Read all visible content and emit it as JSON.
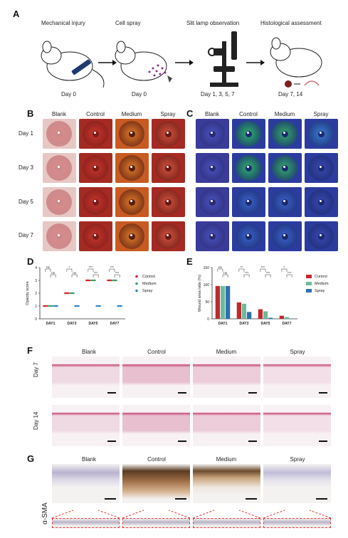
{
  "panels": {
    "A": "A",
    "B": "B",
    "C": "C",
    "D": "D",
    "E": "E",
    "F": "F",
    "G": "G"
  },
  "flow": {
    "steps": [
      {
        "title": "Mechanical injury",
        "day": "Day 0"
      },
      {
        "title": "Cell spray",
        "day": "Day 0"
      },
      {
        "title": "Slit lamp observation",
        "day": "Day 1, 3, 5, 7"
      },
      {
        "title": "Histological assessment",
        "day": "Day 7, 14"
      }
    ]
  },
  "groups": [
    "Blank",
    "Control",
    "Medium",
    "Spray"
  ],
  "days_bc": [
    "Day 1",
    "Day 3",
    "Day 5",
    "Day 7"
  ],
  "chart_data": [
    {
      "type": "scatter",
      "panel": "D",
      "ylabel": "Opacity score",
      "categories": [
        "DAY1",
        "DAY3",
        "DAY5",
        "DAY7"
      ],
      "ylim": [
        0,
        4
      ],
      "yticks": [
        0,
        1,
        2,
        3,
        4
      ],
      "series": [
        {
          "name": "Control",
          "color": "#d7262b",
          "values": [
            1,
            2,
            3,
            3
          ]
        },
        {
          "name": "Medium",
          "color": "#3da06a",
          "values": [
            1,
            2,
            3,
            3
          ]
        },
        {
          "name": "Spray",
          "color": "#2e86c9",
          "values": [
            1,
            1,
            1,
            1
          ]
        }
      ],
      "significance": [
        [
          "ns",
          "ns"
        ],
        [
          "*",
          "ns"
        ],
        [
          "***",
          "***"
        ],
        [
          "***",
          "***"
        ]
      ]
    },
    {
      "type": "bar",
      "panel": "E",
      "ylabel": "Wound area ratio (%)",
      "categories": [
        "DAY1",
        "DAY3",
        "DAY5",
        "DAY7"
      ],
      "ylim": [
        0,
        150
      ],
      "yticks": [
        0,
        50,
        100,
        150
      ],
      "series": [
        {
          "name": "Control",
          "color": "#c0282f",
          "values": [
            96,
            48,
            28,
            9
          ]
        },
        {
          "name": "Medium",
          "color": "#6dbb9a",
          "values": [
            96,
            44,
            22,
            5
          ]
        },
        {
          "name": "Spray",
          "color": "#2f6fb0",
          "values": [
            96,
            20,
            3,
            1
          ]
        }
      ],
      "significance": [
        [
          "ns",
          "ns"
        ],
        [
          "**",
          "***"
        ],
        [
          "***",
          "***"
        ],
        [
          "*",
          "***"
        ]
      ]
    }
  ],
  "histology": {
    "days": [
      "Day 7",
      "Day 14"
    ]
  },
  "ihc": {
    "stain": "α-SMA"
  }
}
